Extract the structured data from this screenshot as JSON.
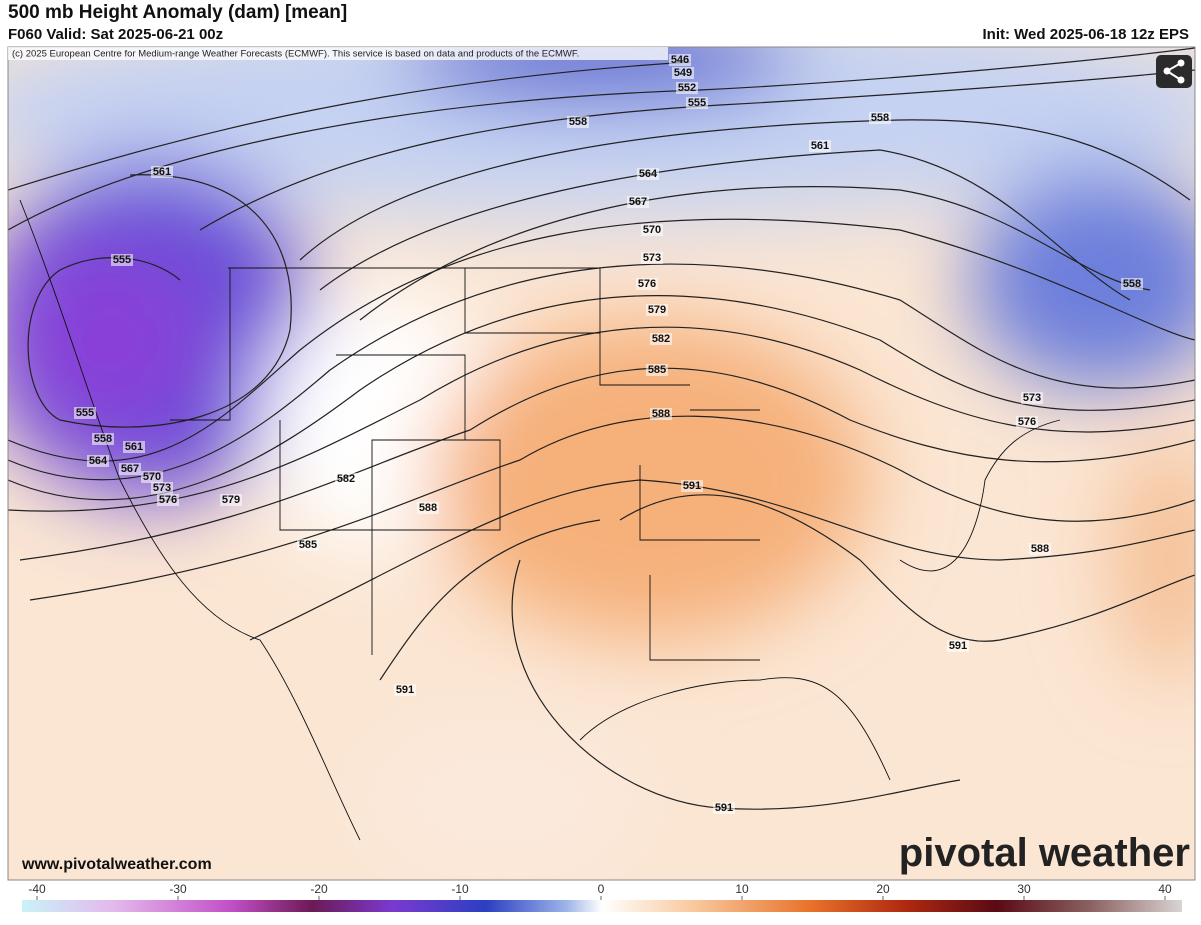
{
  "header": {
    "title": "500 mb Height Anomaly (dam) [mean]",
    "valid": "F060 Valid: Sat 2025-06-21 00z",
    "init": "Init: Wed 2025-06-18 12z EPS"
  },
  "map": {
    "copyright": "(c) 2025 European Centre for Medium-range Weather Forecasts (ECMWF). This service is based on data and products of the ECMWF.",
    "contour_labels": [
      "546",
      "549",
      "552",
      "555",
      "558",
      "558",
      "561",
      "564",
      "567",
      "570",
      "573",
      "576",
      "579",
      "582",
      "585",
      "588",
      "591",
      "591",
      "591",
      "591",
      "588",
      "573",
      "576",
      "558",
      "561",
      "555",
      "555",
      "558",
      "561",
      "564",
      "567",
      "570",
      "573",
      "576",
      "579",
      "582",
      "585",
      "588"
    ],
    "website": "www.pivotalweather.com",
    "logo": "pivotal weather"
  },
  "colorbar": {
    "ticks": [
      -40,
      -30,
      -20,
      -10,
      0,
      10,
      20,
      30,
      40
    ]
  }
}
